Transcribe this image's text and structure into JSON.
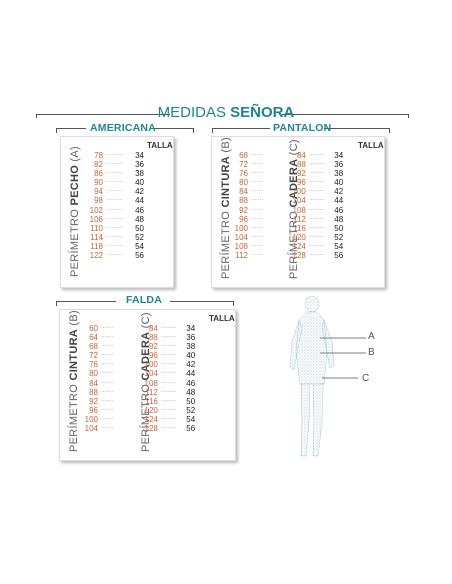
{
  "title": {
    "light": "MEDIDAS",
    "bold": "SEÑORA"
  },
  "sections": {
    "americana": {
      "label": "AMERICANA",
      "talla_header": "TALLA",
      "vertical_label_light": "PERÍMETRO",
      "vertical_label_bold": "PECHO",
      "vertical_label_suffix": "(A)",
      "measures": [
        "78",
        "82",
        "86",
        "90",
        "94",
        "98",
        "102",
        "106",
        "110",
        "114",
        "118",
        "122"
      ],
      "sizes": [
        "34",
        "36",
        "38",
        "40",
        "42",
        "44",
        "46",
        "48",
        "50",
        "52",
        "54",
        "56"
      ]
    },
    "pantalon": {
      "label": "PANTALON",
      "talla_header": "TALLA",
      "cintura_label_light": "PERÍMETRO",
      "cintura_label_bold": "CINTURA",
      "cintura_label_suffix": "(B)",
      "cadera_label_light": "PERÍMETRO",
      "cadera_label_bold": "CADERA",
      "cadera_label_suffix": "(C)",
      "cintura": [
        "68",
        "72",
        "76",
        "80",
        "84",
        "88",
        "92",
        "96",
        "100",
        "104",
        "108",
        "112"
      ],
      "cadera": [
        "84",
        "88",
        "92",
        "96",
        "100",
        "104",
        "108",
        "112",
        "116",
        "120",
        "124",
        "128"
      ],
      "sizes": [
        "34",
        "36",
        "38",
        "40",
        "42",
        "44",
        "46",
        "48",
        "50",
        "52",
        "54",
        "56"
      ]
    },
    "falda": {
      "label": "FALDA",
      "talla_header": "TALLA",
      "cintura_label_light": "PERÍMETRO",
      "cintura_label_bold": "CINTURA",
      "cintura_label_suffix": "(B)",
      "cadera_label_light": "PERÍMETRO",
      "cadera_label_bold": "CADERA",
      "cadera_label_suffix": "(C)",
      "cintura": [
        "60",
        "64",
        "68",
        "72",
        "76",
        "80",
        "84",
        "88",
        "92",
        "96",
        "100",
        "104"
      ],
      "cadera": [
        "84",
        "88",
        "92",
        "96",
        "100",
        "104",
        "108",
        "112",
        "116",
        "120",
        "124",
        "128"
      ],
      "sizes": [
        "34",
        "36",
        "38",
        "40",
        "42",
        "44",
        "46",
        "48",
        "50",
        "52",
        "54",
        "56"
      ]
    }
  },
  "figure": {
    "marker_a": "A",
    "marker_b": "B",
    "marker_c": "C"
  },
  "colors": {
    "accent": "#1f8590",
    "measure": "#c0673c",
    "text": "#222222"
  }
}
